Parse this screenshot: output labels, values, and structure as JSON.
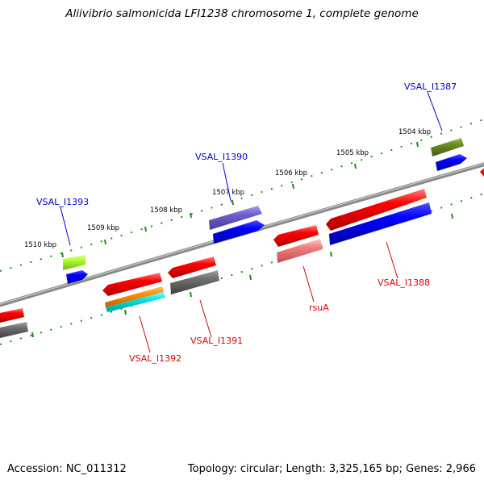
{
  "title": "Aliivibrio salmonicida LFI1238 chromosome 1, complete genome",
  "accession": "Accession: NC_011312",
  "summary": "Topology: circular; Length: 3,325,165 bp; Genes: 2,966",
  "ticks": [
    "1510 kbp",
    "1509 kbp",
    "1508 kbp",
    "1507 kbp",
    "1506 kbp",
    "1505 kbp",
    "1504 kbp"
  ],
  "genes": [
    {
      "name": "VSAL_I1393",
      "strand": "forward",
      "color": "#0000cc"
    },
    {
      "name": "VSAL_I1390",
      "strand": "forward",
      "color": "#0000cc"
    },
    {
      "name": "VSAL_I1387",
      "strand": "forward",
      "color": "#0000cc"
    },
    {
      "name": "VSAL_I1392",
      "strand": "reverse",
      "color": "#dd0000"
    },
    {
      "name": "VSAL_I1391",
      "strand": "reverse",
      "color": "#dd0000"
    },
    {
      "name": "rsuA",
      "strand": "reverse",
      "color": "#dd0000"
    },
    {
      "name": "VSAL_I1388",
      "strand": "reverse",
      "color": "#dd0000"
    }
  ],
  "colors": {
    "backbone": "#808080",
    "tick_dots": "#228b22",
    "cds": "#ff0000",
    "gene": "#0000ee"
  }
}
